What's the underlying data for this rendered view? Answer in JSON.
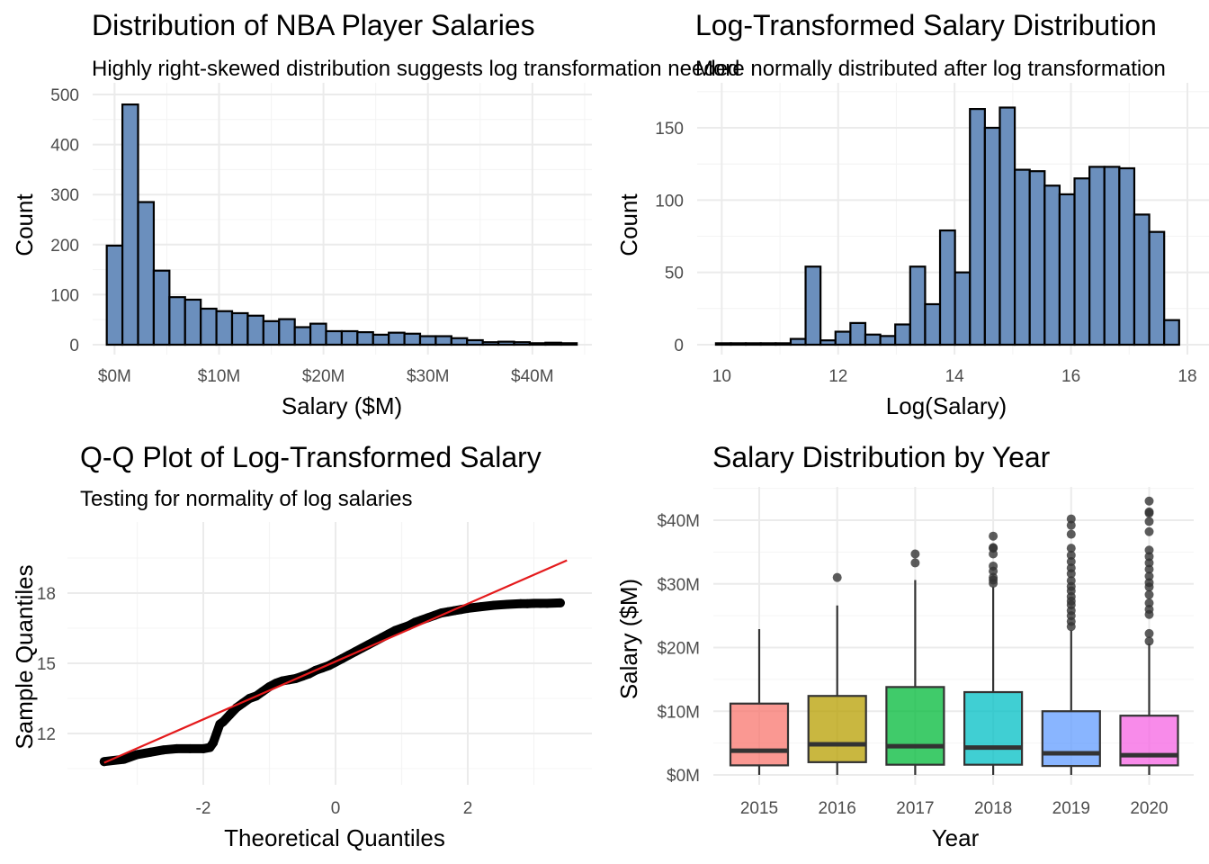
{
  "chart_data": [
    {
      "type": "bar",
      "title": "Distribution of NBA Player Salaries",
      "subtitle": "Highly right-skewed distribution suggests log transformation needed",
      "xlabel": "Salary ($M)",
      "ylabel": "Count",
      "x_ticks": [
        {
          "value": 0,
          "label": "$0M"
        },
        {
          "value": 10,
          "label": "$10M"
        },
        {
          "value": 20,
          "label": "$20M"
        },
        {
          "value": 30,
          "label": "$30M"
        },
        {
          "value": 40,
          "label": "$40M"
        }
      ],
      "y_ticks": [
        0,
        100,
        200,
        300,
        400,
        500
      ],
      "xlim": [
        -2.1,
        45.7
      ],
      "ylim": [
        0,
        500
      ],
      "bin_start": -0.75,
      "bin_width": 1.5,
      "values": [
        198,
        480,
        285,
        148,
        95,
        90,
        72,
        67,
        63,
        58,
        47,
        51,
        35,
        42,
        27,
        27,
        25,
        20,
        24,
        22,
        17,
        17,
        13,
        9,
        5,
        6,
        5,
        3,
        4,
        3
      ],
      "grid": true,
      "fill_color": "#6b8fbd"
    },
    {
      "type": "bar",
      "title": "Log-Transformed Salary Distribution",
      "subtitle": "More normally distributed after log transformation",
      "xlabel": "Log(Salary)",
      "ylabel": "Count",
      "x_ticks": [
        {
          "value": 10,
          "label": "10"
        },
        {
          "value": 12,
          "label": "12"
        },
        {
          "value": 14,
          "label": "14"
        },
        {
          "value": 16,
          "label": "16"
        },
        {
          "value": 18,
          "label": "18"
        }
      ],
      "y_ticks": [
        0,
        50,
        100,
        150
      ],
      "xlim": [
        9.5,
        18.0
      ],
      "ylim": [
        0,
        172
      ],
      "bin_start": 9.9,
      "bin_width": 0.2567,
      "values": [
        1,
        1,
        1,
        1,
        1,
        4,
        54,
        3,
        9,
        15,
        7,
        6,
        14,
        54,
        28,
        79,
        50,
        163,
        150,
        164,
        121,
        120,
        110,
        104,
        115,
        123,
        123,
        122,
        90,
        78,
        17
      ],
      "grid": true,
      "fill_color": "#6b8fbd"
    },
    {
      "type": "scatter",
      "title": "Q-Q Plot of Log-Transformed Salary",
      "subtitle": "Testing for normality of log salaries",
      "xlabel": "Theoretical Quantiles",
      "ylabel": "Sample Quantiles",
      "x_ticks": [
        {
          "value": -2,
          "label": "-2"
        },
        {
          "value": 0,
          "label": "0"
        },
        {
          "value": 2,
          "label": "2"
        }
      ],
      "y_ticks": [
        {
          "value": 12,
          "label": "12"
        },
        {
          "value": 15,
          "label": "15"
        },
        {
          "value": 18,
          "label": "18"
        }
      ],
      "xlim": [
        -3.7,
        3.6
      ],
      "ylim": [
        10.5,
        19.7
      ],
      "points": [
        [
          -3.5,
          10.8
        ],
        [
          -3.2,
          10.9
        ],
        [
          -3.0,
          11.1
        ],
        [
          -2.8,
          11.2
        ],
        [
          -2.6,
          11.3
        ],
        [
          -2.4,
          11.35
        ],
        [
          -2.2,
          11.35
        ],
        [
          -2.0,
          11.35
        ],
        [
          -1.9,
          11.4
        ],
        [
          -1.85,
          11.6
        ],
        [
          -1.8,
          12.0
        ],
        [
          -1.75,
          12.4
        ],
        [
          -1.7,
          12.5
        ],
        [
          -1.6,
          12.8
        ],
        [
          -1.5,
          13.1
        ],
        [
          -1.4,
          13.3
        ],
        [
          -1.3,
          13.5
        ],
        [
          -1.2,
          13.6
        ],
        [
          -1.1,
          13.8
        ],
        [
          -1.0,
          14.0
        ],
        [
          -0.9,
          14.15
        ],
        [
          -0.8,
          14.25
        ],
        [
          -0.7,
          14.3
        ],
        [
          -0.6,
          14.35
        ],
        [
          -0.5,
          14.45
        ],
        [
          -0.4,
          14.55
        ],
        [
          -0.3,
          14.7
        ],
        [
          -0.2,
          14.8
        ],
        [
          -0.1,
          14.9
        ],
        [
          0.0,
          15.05
        ],
        [
          0.1,
          15.2
        ],
        [
          0.2,
          15.35
        ],
        [
          0.3,
          15.5
        ],
        [
          0.4,
          15.65
        ],
        [
          0.5,
          15.8
        ],
        [
          0.6,
          15.95
        ],
        [
          0.7,
          16.1
        ],
        [
          0.8,
          16.25
        ],
        [
          0.9,
          16.4
        ],
        [
          1.0,
          16.5
        ],
        [
          1.1,
          16.6
        ],
        [
          1.2,
          16.75
        ],
        [
          1.3,
          16.85
        ],
        [
          1.4,
          16.95
        ],
        [
          1.5,
          17.05
        ],
        [
          1.6,
          17.15
        ],
        [
          1.7,
          17.2
        ],
        [
          1.8,
          17.25
        ],
        [
          1.9,
          17.3
        ],
        [
          2.0,
          17.35
        ],
        [
          2.2,
          17.42
        ],
        [
          2.4,
          17.48
        ],
        [
          2.6,
          17.52
        ],
        [
          2.8,
          17.55
        ],
        [
          2.9,
          17.55
        ],
        [
          3.0,
          17.56
        ],
        [
          3.1,
          17.56
        ],
        [
          3.2,
          17.56
        ],
        [
          3.4,
          17.58
        ]
      ],
      "reference_line": {
        "x": [
          -3.5,
          3.5
        ],
        "y": [
          10.75,
          19.4
        ],
        "color": "#e41a1c"
      },
      "grid": true
    },
    {
      "type": "box",
      "title": "Salary Distribution by Year",
      "xlabel": "Year",
      "ylabel": "Salary ($M)",
      "categories": [
        "2015",
        "2016",
        "2017",
        "2018",
        "2019",
        "2020"
      ],
      "y_ticks": [
        {
          "value": 0,
          "label": "$0M"
        },
        {
          "value": 10,
          "label": "$10M"
        },
        {
          "value": 20,
          "label": "$20M"
        },
        {
          "value": 30,
          "label": "$30M"
        },
        {
          "value": 40,
          "label": "$40M"
        }
      ],
      "ylim": [
        -0.5,
        45.2
      ],
      "colors": [
        "#f8766d",
        "#b79f00",
        "#00ba38",
        "#00bfc4",
        "#619cff",
        "#f564e3"
      ],
      "boxes": [
        {
          "min": 0,
          "q1": 1.5,
          "median": 3.8,
          "q3": 11.2,
          "max": 22.9,
          "outliers": []
        },
        {
          "min": 0,
          "q1": 2.0,
          "median": 4.8,
          "q3": 12.4,
          "max": 26.6,
          "outliers": [
            31.0
          ]
        },
        {
          "min": 0,
          "q1": 1.6,
          "median": 4.5,
          "q3": 13.8,
          "max": 30.6,
          "outliers": [
            33.3,
            34.7
          ]
        },
        {
          "min": 0,
          "q1": 1.6,
          "median": 4.3,
          "q3": 13.0,
          "max": 29.5,
          "outliers": [
            30.1,
            30.6,
            31.0,
            32.0,
            32.8,
            34.7,
            35.6,
            35.7,
            37.5
          ]
        },
        {
          "min": 0,
          "q1": 1.4,
          "median": 3.4,
          "q3": 10.0,
          "max": 22.7,
          "outliers": [
            23.3,
            24.1,
            25.0,
            25.8,
            26.7,
            27.3,
            28.0,
            28.9,
            29.6,
            30.5,
            31.6,
            32.5,
            33.5,
            34.5,
            35.6,
            37.8,
            39.2,
            40.2
          ]
        },
        {
          "min": 0,
          "q1": 1.5,
          "median": 3.1,
          "q3": 9.3,
          "max": 20.6,
          "outliers": [
            21.0,
            22.2,
            25.2,
            26.0,
            27.0,
            28.3,
            29.5,
            30.2,
            31.2,
            32.3,
            33.3,
            34.3,
            35.3,
            38.2,
            39.8,
            41.1,
            41.3,
            43.0
          ]
        }
      ],
      "grid": true
    }
  ]
}
